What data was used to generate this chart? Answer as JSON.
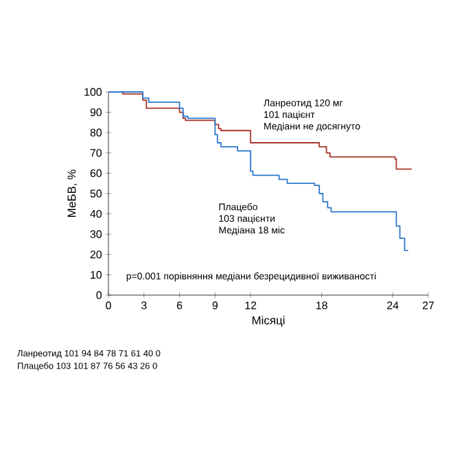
{
  "chart_data": {
    "type": "step",
    "xlabel": "Місяці",
    "ylabel": "МеБВ, %",
    "xlim": [
      0,
      27
    ],
    "ylim": [
      0,
      100
    ],
    "xticks": [
      0,
      3,
      6,
      9,
      12,
      18,
      24,
      27
    ],
    "yticks": [
      0,
      10,
      20,
      30,
      40,
      50,
      60,
      70,
      80,
      90,
      100
    ],
    "grid": false,
    "series": [
      {
        "name": "Ланреотид 120 мг",
        "color": "#a8342a",
        "x": [
          0,
          1.2,
          2.9,
          3.2,
          6.0,
          6.3,
          6.5,
          9.0,
          9.3,
          9.5,
          12.0,
          17.8,
          18.4,
          18.7,
          24.2,
          24.3,
          25.6
        ],
        "values": [
          100,
          99,
          96,
          92,
          90,
          87,
          86,
          84,
          82,
          81,
          75,
          73,
          70,
          68,
          67,
          62,
          62
        ]
      },
      {
        "name": "Плацебо",
        "color": "#2b78cc",
        "x": [
          0,
          2.9,
          3.4,
          6.0,
          6.3,
          6.7,
          9.0,
          9.2,
          9.5,
          10.9,
          12.0,
          12.2,
          14.4,
          15.1,
          17.4,
          17.8,
          18.1,
          18.5,
          18.8,
          24.3,
          24.6,
          24.8,
          25.0,
          25.3
        ],
        "values": [
          100,
          97,
          95,
          92,
          88,
          87,
          79,
          75,
          73,
          71,
          61,
          59,
          57,
          55,
          54,
          50,
          46,
          43,
          41,
          34,
          28,
          28,
          22,
          22
        ]
      }
    ],
    "annotations": [
      "101 пацієнт",
      "Медіани не досягнуто",
      "103 пацієнти",
      "Медіана 18 міс",
      "p=0.001 порівняння медіани безрецидивної виживаності",
      "Ланреотид  101   94   84   78   71   61   40   0",
      "Плацебо      103  101   87   76   56   43   26   0"
    ]
  }
}
